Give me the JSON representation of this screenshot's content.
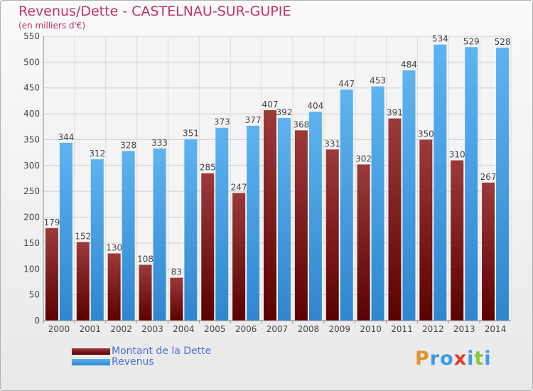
{
  "header": {
    "title": "Revenus/Dette - CASTELNAU-SUR-GUPIE",
    "subtitle": "(en milliers d'€)"
  },
  "legend": {
    "items": [
      {
        "label": "Montant de la Dette",
        "color": "#8b1a1a"
      },
      {
        "label": "Revenus",
        "color": "#3e9be4"
      }
    ]
  },
  "logo": {
    "text": "Proxiti",
    "letters": [
      {
        "ch": "P",
        "color": "#e3912b"
      },
      {
        "ch": "r",
        "color": "#3e9be4"
      },
      {
        "ch": "o",
        "color": "#3e9be4"
      },
      {
        "ch": "x",
        "color": "#e23b2c"
      },
      {
        "ch": "i",
        "color": "#3e9be4"
      },
      {
        "ch": "t",
        "color": "#8cc63e"
      },
      {
        "ch": "i",
        "color": "#3e9be4"
      }
    ]
  },
  "chart_data": {
    "type": "bar",
    "title": "Revenus/Dette - CASTELNAU-SUR-GUPIE",
    "subtitle": "(en milliers d'€)",
    "xlabel": "",
    "ylabel": "",
    "ylim": [
      0,
      550
    ],
    "yticks": [
      0,
      50,
      100,
      150,
      200,
      250,
      300,
      350,
      400,
      450,
      500,
      550
    ],
    "grid": true,
    "legend_position": "bottom-left",
    "categories": [
      "2000",
      "2001",
      "2002",
      "2003",
      "2004",
      "2005",
      "2006",
      "2007",
      "2008",
      "2009",
      "2010",
      "2011",
      "2012",
      "2013",
      "2014"
    ],
    "series": [
      {
        "name": "Montant de la Dette",
        "color": "#8b1a1a",
        "values": [
          179,
          152,
          130,
          108,
          83,
          285,
          247,
          407,
          368,
          331,
          302,
          391,
          350,
          310,
          267
        ]
      },
      {
        "name": "Revenus",
        "color": "#3e9be4",
        "values": [
          344,
          312,
          328,
          333,
          351,
          373,
          377,
          392,
          404,
          447,
          453,
          484,
          534,
          529,
          528
        ]
      }
    ]
  }
}
